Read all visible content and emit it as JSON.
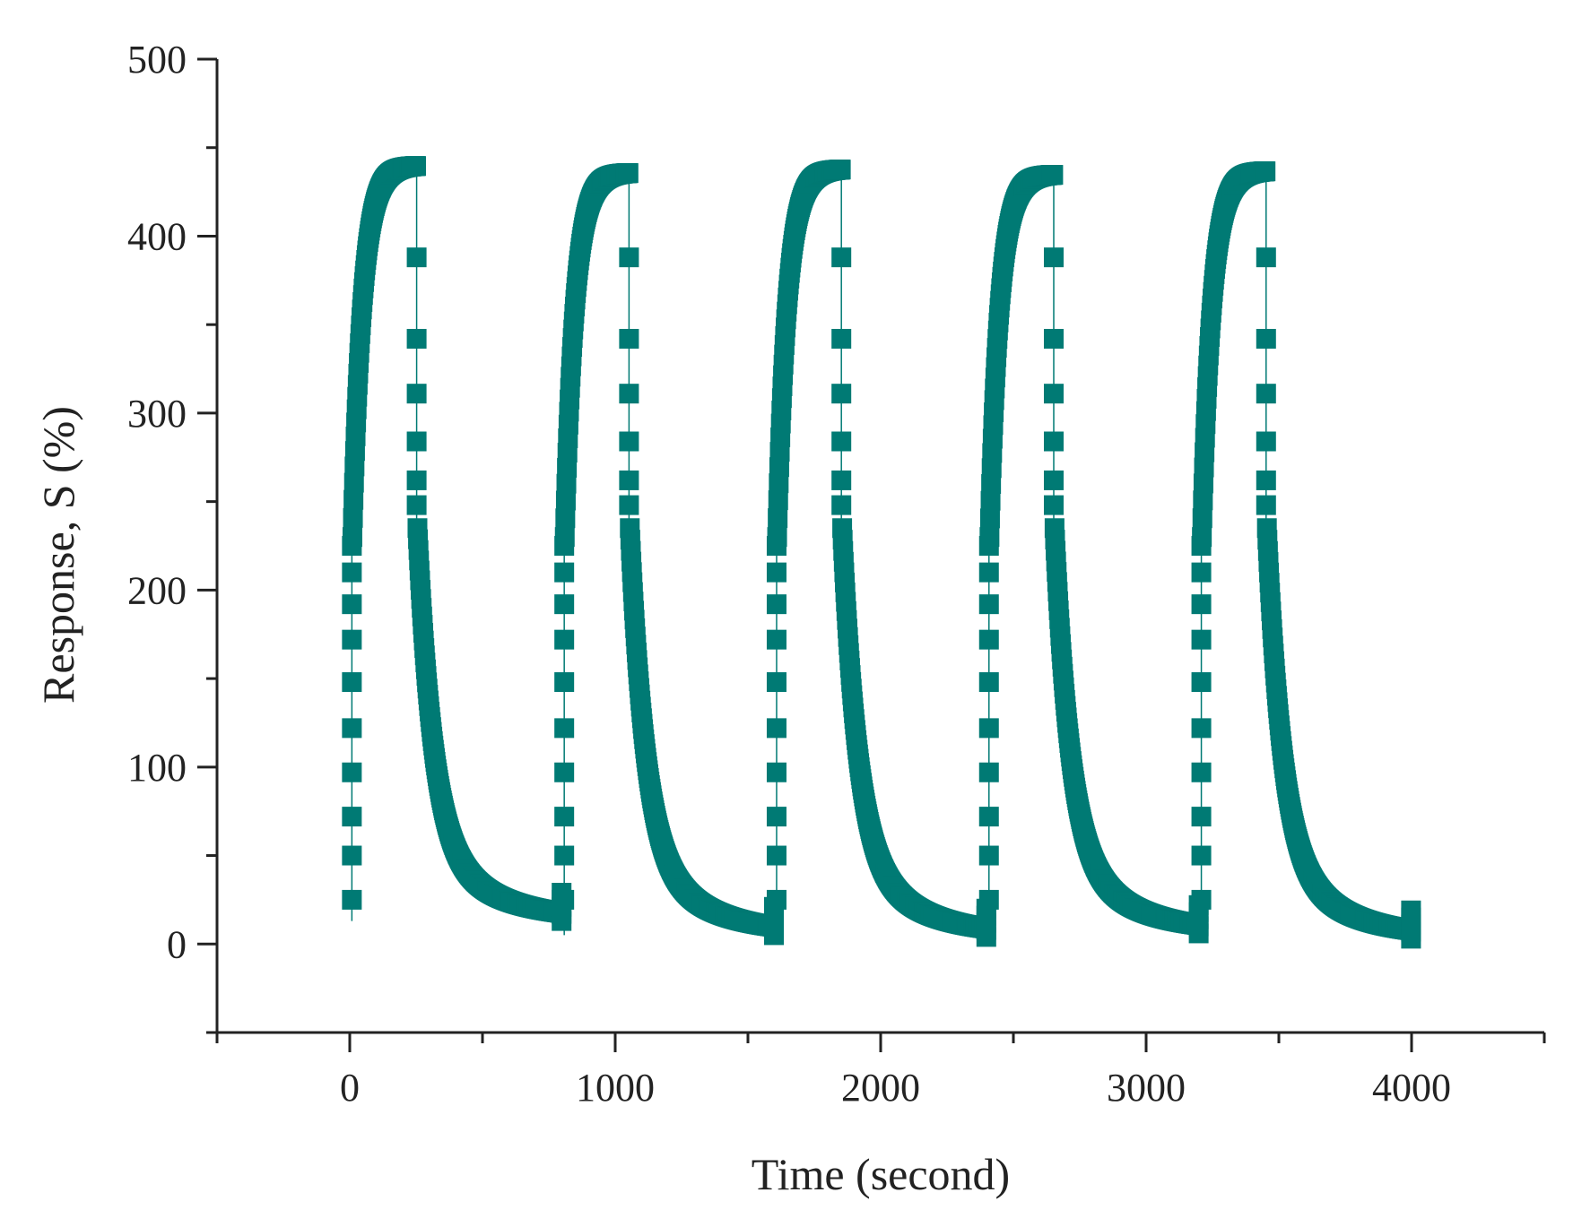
{
  "chart_data": {
    "type": "scatter",
    "title": "",
    "xlabel": "Time (second)",
    "ylabel": "Response, S (%)",
    "xlim": [
      -500,
      4500
    ],
    "ylim": [
      -50,
      500
    ],
    "x_ticks": [
      0,
      1000,
      2000,
      3000,
      4000
    ],
    "x_minor_ticks": [
      -500,
      500,
      1500,
      2500,
      3500,
      4500
    ],
    "y_ticks": [
      0,
      100,
      200,
      300,
      400,
      500
    ],
    "y_minor_ticks": [
      -50,
      50,
      150,
      250,
      350,
      450
    ],
    "grid": false,
    "legend": "none",
    "marker": "square",
    "color": "#007a74",
    "series": [
      {
        "name": "Response",
        "cycles": [
          {
            "start": 0,
            "end": 800,
            "base": 13,
            "peak": 440
          },
          {
            "start": 800,
            "end": 1600,
            "base": 5,
            "peak": 436
          },
          {
            "start": 1600,
            "end": 2400,
            "base": 4,
            "peak": 438
          },
          {
            "start": 2400,
            "end": 3200,
            "base": 6,
            "peak": 435
          },
          {
            "start": 3200,
            "end": 4000,
            "base": 3,
            "peak": 437
          }
        ],
        "on_duration": 250,
        "transition_points_rising": [
          25,
          50,
          72,
          97,
          122,
          148,
          172,
          192,
          210,
          225
        ],
        "transition_points_falling": [
          388,
          342,
          311,
          284,
          262,
          248
        ]
      }
    ]
  }
}
